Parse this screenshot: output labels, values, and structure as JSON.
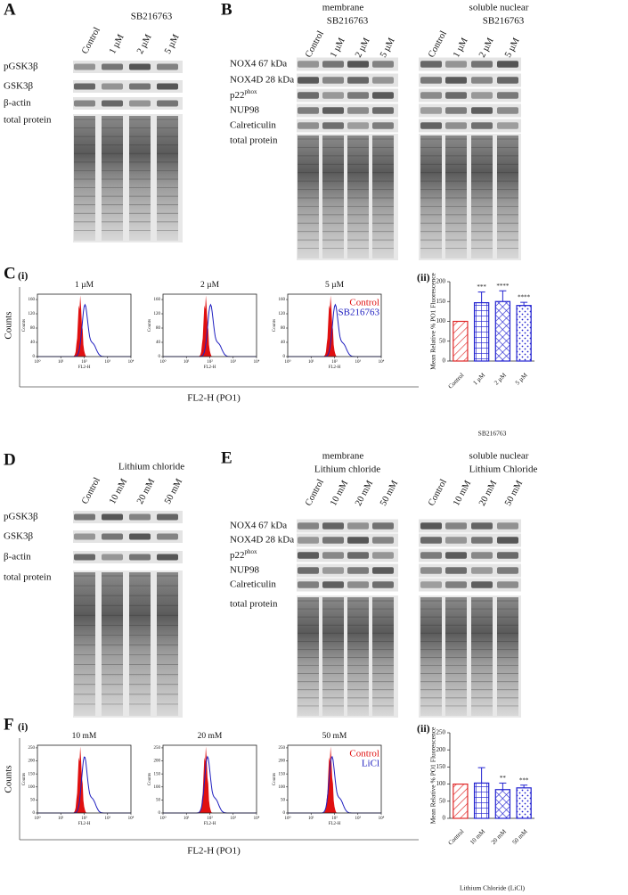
{
  "panels": {
    "A": {
      "label": "A",
      "treatment": "SB216763",
      "lanes": [
        "Control",
        "1 µM",
        "2 µM",
        "5 µM"
      ],
      "rows": [
        "pGSK3β",
        "GSK3β",
        "β-actin",
        "total protein"
      ]
    },
    "B": {
      "label": "B",
      "groups": [
        {
          "fraction": "membrane",
          "treatment": "SB216763"
        },
        {
          "fraction": "soluble nuclear",
          "treatment": "SB216763"
        }
      ],
      "lanes": [
        "Control",
        "1 µM",
        "2 µM",
        "5 µM"
      ],
      "rows": [
        "NOX4 67 kDa",
        "NOX4D 28 kDa",
        {
          "text": "p22",
          "sup": "phox"
        },
        "NUP98",
        "Calreticulin",
        "total protein"
      ]
    },
    "C": {
      "label": "C",
      "sub_i": "(i)",
      "sub_ii": "(ii)",
      "counts": "Counts",
      "xlabel": "FL2-H (PO1)",
      "plot_xlabel": "FL2-H",
      "plot_ylabel": "Counts",
      "titles": [
        "1 µM",
        "2 µM",
        "5 µM"
      ],
      "legend": [
        {
          "name": "Control",
          "color": "#e01010"
        },
        {
          "name": "SB216763",
          "color": "#2020c0"
        }
      ],
      "ylim": [
        0,
        175
      ],
      "yticks": [
        0,
        40,
        80,
        120,
        160
      ],
      "xlim": [
        1,
        10000
      ],
      "xticks": [
        {
          "value": 1,
          "label": "10⁰"
        },
        {
          "value": 10,
          "label": "10¹"
        },
        {
          "value": 100,
          "label": "10²"
        },
        {
          "value": 1000,
          "label": "10³"
        },
        {
          "value": 10000,
          "label": "10⁴"
        }
      ]
    },
    "D": {
      "label": "D",
      "treatment": "Lithium chloride",
      "lanes": [
        "Control",
        "10 mM",
        "20 mM",
        "50 mM"
      ],
      "rows": [
        "pGSK3β",
        "GSK3β",
        "β-actin",
        "total protein"
      ]
    },
    "E": {
      "label": "E",
      "groups": [
        {
          "fraction": "membrane",
          "treatment": "Lithium chloride"
        },
        {
          "fraction": "soluble nuclear",
          "treatment": "Lithium Chloride"
        }
      ],
      "lanes": [
        "Control",
        "10 mM",
        "20 mM",
        "50 mM"
      ],
      "rows": [
        "NOX4 67 kDa",
        "NOX4D 28 kDa",
        {
          "text": "p22",
          "sup": "phox"
        },
        "NUP98",
        "Calreticulin",
        "total protein"
      ]
    },
    "F": {
      "label": "F",
      "sub_i": "(i)",
      "sub_ii": "(ii)",
      "counts": "Counts",
      "xlabel": "FL2-H (PO1)",
      "plot_xlabel": "FL2-H",
      "plot_ylabel": "Counts",
      "titles": [
        "10 mM",
        "20 mM",
        "50 mM"
      ],
      "legend": [
        {
          "name": "Control",
          "color": "#e01010"
        },
        {
          "name": "LiCl",
          "color": "#2020c0"
        }
      ],
      "ylim": [
        0,
        260
      ],
      "yticks": [
        0,
        50,
        100,
        150,
        200,
        250
      ],
      "xlim": [
        1,
        10000
      ],
      "xticks": [
        {
          "value": 1,
          "label": "10⁰"
        },
        {
          "value": 10,
          "label": "10¹"
        },
        {
          "value": 100,
          "label": "10²"
        },
        {
          "value": 1000,
          "label": "10³"
        },
        {
          "value": 10000,
          "label": "10⁴"
        }
      ]
    }
  },
  "chart_data": [
    {
      "type": "bar",
      "ylabel": "Mean Relative % PO1 Fluorescence",
      "xlabel": "SB216763",
      "categories": [
        "Control",
        "1 µM",
        "2 µM",
        "5 µM"
      ],
      "values": [
        100,
        147,
        150,
        140
      ],
      "errors": [
        0,
        27,
        27,
        8
      ],
      "annotations": [
        null,
        "***",
        "****",
        "****"
      ],
      "colors": [
        "#e02828",
        "#2222d0",
        "#2222d0",
        "#2222d0"
      ],
      "ylim": [
        0,
        200
      ],
      "yticks": [
        0,
        50,
        100,
        150,
        200
      ]
    },
    {
      "type": "bar",
      "ylabel": "Mean Relative % PO1 Fluorescence",
      "xlabel": "Lithium Chloride (LiCl)",
      "categories": [
        "Control",
        "10 mM",
        "20 mM",
        "50 mM"
      ],
      "values": [
        100,
        103,
        84,
        89
      ],
      "errors": [
        0,
        45,
        19,
        8
      ],
      "annotations": [
        null,
        null,
        "**",
        "***"
      ],
      "colors": [
        "#e02828",
        "#2222d0",
        "#2222d0",
        "#2222d0"
      ],
      "ylim": [
        0,
        250
      ],
      "yticks": [
        0,
        50,
        100,
        150,
        200,
        250
      ]
    }
  ]
}
